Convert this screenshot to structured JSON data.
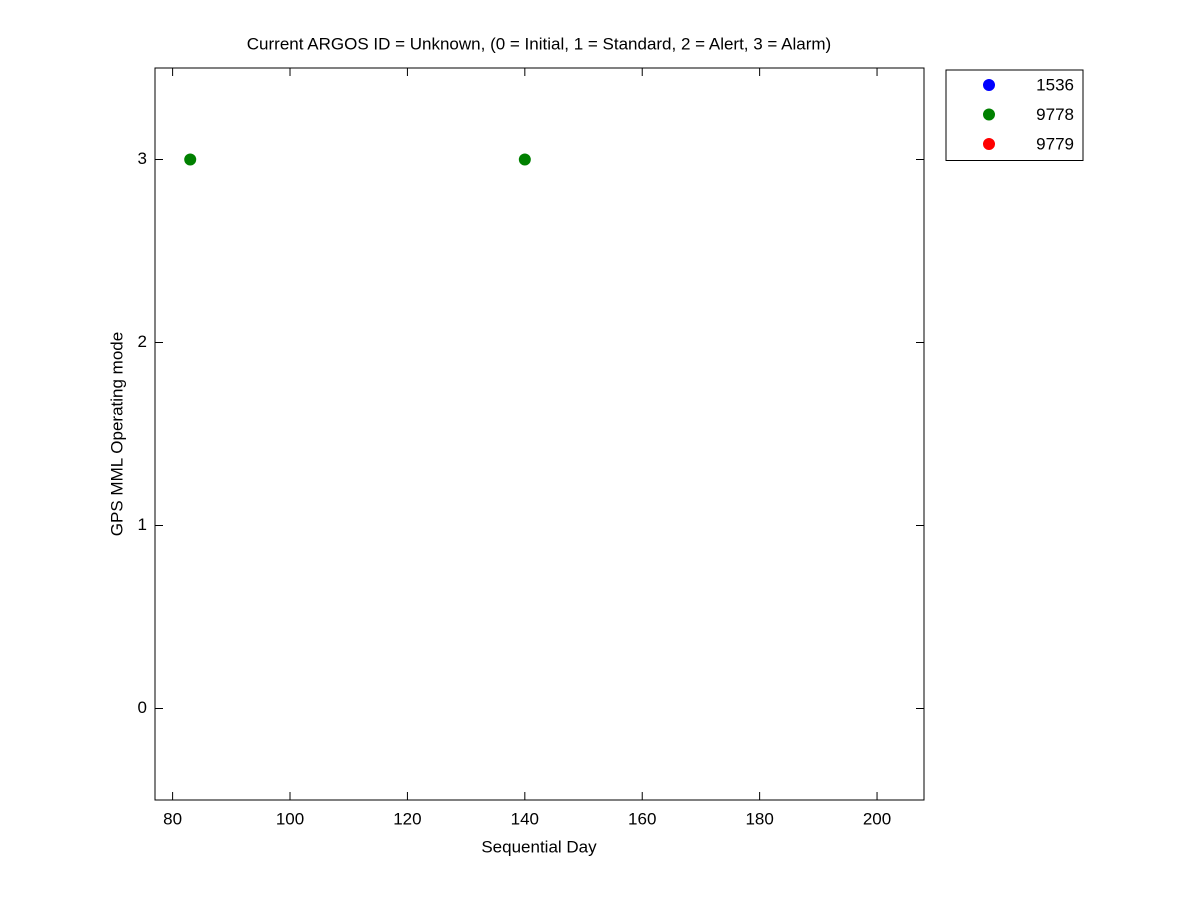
{
  "chart_data": {
    "type": "scatter",
    "title": "Current ARGOS ID = Unknown, (0 = Initial, 1 = Standard, 2 = Alert, 3 = Alarm)",
    "x_label": "Sequential Day",
    "y_label": "GPS MML Operating mode",
    "xlim": [
      77,
      208
    ],
    "xticks": [
      80,
      100,
      120,
      140,
      160,
      180,
      200
    ],
    "ylim": [
      -0.5,
      3.5
    ],
    "yticks": [
      0,
      1,
      2,
      3
    ],
    "grid": false,
    "legend": "outside-top-right",
    "series": [
      {
        "name": "1536",
        "color": "#0000ff",
        "x": [],
        "values": []
      },
      {
        "name": "9778",
        "color": "#008000",
        "x": [
          83,
          140
        ],
        "values": [
          3,
          3
        ]
      },
      {
        "name": "9779",
        "color": "#ff0000",
        "x": [],
        "values": []
      }
    ]
  }
}
